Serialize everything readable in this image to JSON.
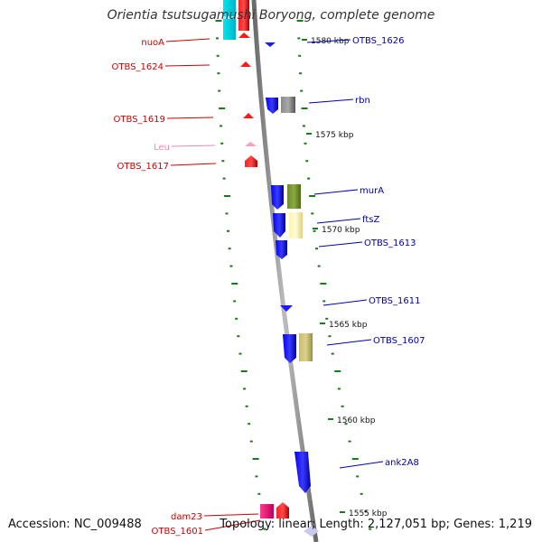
{
  "title": "Orientia tsutsugamushi Boryong, complete genome",
  "footer": {
    "accession": "Accession: NC_009488",
    "summary": "Topology: linear; Length: 2,127,051 bp; Genes: 1,219"
  },
  "colors": {
    "backbone": "#8a8a8a",
    "tick": "#1a7a1a",
    "left_label": "#cc0000",
    "right_label": "#0000aa",
    "trna_label": "#ee88aa"
  },
  "scale_labels": [
    "1580 kbp",
    "1575 kbp",
    "1570 kbp",
    "1565 kbp",
    "1560 kbp",
    "1555 kbp"
  ],
  "left_labels": [
    "nuoA",
    "OTBS_1624",
    "OTBS_1619",
    "Leu",
    "OTBS_1617",
    "dam23",
    "OTBS_1601"
  ],
  "right_labels": [
    "OTBS_1626",
    "rbn",
    "murA",
    "ftsZ",
    "OTBS_1613",
    "OTBS_1611",
    "OTBS_1607",
    "ank2A8"
  ]
}
